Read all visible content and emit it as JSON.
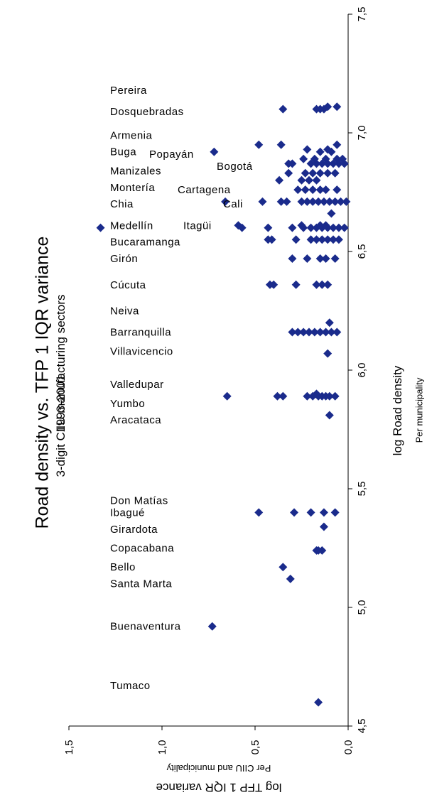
{
  "title": "Road density vs. TFP 1 IQR variance",
  "subtitle_line1": "3-digit CIIU manufacturing sectors",
  "subtitle_line2": "1993-2001",
  "chart_data": {
    "type": "scatter",
    "title": "Road density vs. TFP 1 IQR variance",
    "subtitle": [
      "3-digit CIIU manufacturing sectors",
      "1993-2001"
    ],
    "xlabel": "log Road density",
    "xlabel_sub": "Per municipality",
    "ylabel": "log TFP 1 IQR variance",
    "ylabel_sub": "Per CIIU and municipality",
    "xlim": [
      4.5,
      7.5
    ],
    "ylim": [
      0.0,
      1.5
    ],
    "x_ticks": [
      "4,5",
      "5,0",
      "5,5",
      "6,0",
      "6,5",
      "7,0",
      "7,5"
    ],
    "y_ticks": [
      "0,0",
      "0,5",
      "1,0",
      "1,5"
    ],
    "marker_color": "#1a2b8c",
    "grid": false,
    "points": [
      {
        "x": 4.6,
        "y": 0.16
      },
      {
        "x": 4.92,
        "y": 0.73
      },
      {
        "x": 5.12,
        "y": 0.31
      },
      {
        "x": 5.17,
        "y": 0.35
      },
      {
        "x": 5.24,
        "y": 0.14
      },
      {
        "x": 5.24,
        "y": 0.17
      },
      {
        "x": 5.24,
        "y": 0.16
      },
      {
        "x": 5.34,
        "y": 0.13
      },
      {
        "x": 5.4,
        "y": 0.48
      },
      {
        "x": 5.4,
        "y": 0.29
      },
      {
        "x": 5.4,
        "y": 0.2
      },
      {
        "x": 5.4,
        "y": 0.13
      },
      {
        "x": 5.4,
        "y": 0.07
      },
      {
        "x": 5.81,
        "y": 0.1
      },
      {
        "x": 5.89,
        "y": 0.65
      },
      {
        "x": 5.89,
        "y": 0.38
      },
      {
        "x": 5.89,
        "y": 0.35
      },
      {
        "x": 5.89,
        "y": 0.22
      },
      {
        "x": 5.89,
        "y": 0.19
      },
      {
        "x": 5.89,
        "y": 0.16
      },
      {
        "x": 5.89,
        "y": 0.14
      },
      {
        "x": 5.89,
        "y": 0.12
      },
      {
        "x": 5.89,
        "y": 0.1
      },
      {
        "x": 5.89,
        "y": 0.07
      },
      {
        "x": 5.9,
        "y": 0.17
      },
      {
        "x": 6.07,
        "y": 0.11
      },
      {
        "x": 6.16,
        "y": 0.3
      },
      {
        "x": 6.16,
        "y": 0.27
      },
      {
        "x": 6.16,
        "y": 0.24
      },
      {
        "x": 6.16,
        "y": 0.21
      },
      {
        "x": 6.16,
        "y": 0.18
      },
      {
        "x": 6.16,
        "y": 0.15
      },
      {
        "x": 6.16,
        "y": 0.12
      },
      {
        "x": 6.16,
        "y": 0.09
      },
      {
        "x": 6.16,
        "y": 0.06
      },
      {
        "x": 6.2,
        "y": 0.1
      },
      {
        "x": 6.36,
        "y": 0.42
      },
      {
        "x": 6.36,
        "y": 0.4
      },
      {
        "x": 6.36,
        "y": 0.28
      },
      {
        "x": 6.36,
        "y": 0.17
      },
      {
        "x": 6.36,
        "y": 0.14
      },
      {
        "x": 6.36,
        "y": 0.11
      },
      {
        "x": 6.47,
        "y": 0.3
      },
      {
        "x": 6.47,
        "y": 0.22
      },
      {
        "x": 6.47,
        "y": 0.15
      },
      {
        "x": 6.47,
        "y": 0.12
      },
      {
        "x": 6.47,
        "y": 0.07
      },
      {
        "x": 6.55,
        "y": 0.43
      },
      {
        "x": 6.55,
        "y": 0.41
      },
      {
        "x": 6.55,
        "y": 0.28
      },
      {
        "x": 6.55,
        "y": 0.2
      },
      {
        "x": 6.55,
        "y": 0.17
      },
      {
        "x": 6.55,
        "y": 0.14
      },
      {
        "x": 6.55,
        "y": 0.11
      },
      {
        "x": 6.55,
        "y": 0.08
      },
      {
        "x": 6.55,
        "y": 0.05
      },
      {
        "x": 6.6,
        "y": 1.33
      },
      {
        "x": 6.6,
        "y": 0.57
      },
      {
        "x": 6.6,
        "y": 0.43
      },
      {
        "x": 6.6,
        "y": 0.3
      },
      {
        "x": 6.6,
        "y": 0.24
      },
      {
        "x": 6.6,
        "y": 0.2
      },
      {
        "x": 6.6,
        "y": 0.17
      },
      {
        "x": 6.6,
        "y": 0.14
      },
      {
        "x": 6.6,
        "y": 0.11
      },
      {
        "x": 6.6,
        "y": 0.08
      },
      {
        "x": 6.6,
        "y": 0.05
      },
      {
        "x": 6.6,
        "y": 0.02
      },
      {
        "x": 6.61,
        "y": 0.59
      },
      {
        "x": 6.61,
        "y": 0.25
      },
      {
        "x": 6.61,
        "y": 0.15
      },
      {
        "x": 6.61,
        "y": 0.12
      },
      {
        "x": 6.66,
        "y": 0.09
      },
      {
        "x": 6.71,
        "y": 0.66
      },
      {
        "x": 6.71,
        "y": 0.46
      },
      {
        "x": 6.71,
        "y": 0.36
      },
      {
        "x": 6.71,
        "y": 0.33
      },
      {
        "x": 6.71,
        "y": 0.25
      },
      {
        "x": 6.71,
        "y": 0.22
      },
      {
        "x": 6.71,
        "y": 0.19
      },
      {
        "x": 6.71,
        "y": 0.16
      },
      {
        "x": 6.71,
        "y": 0.13
      },
      {
        "x": 6.71,
        "y": 0.1
      },
      {
        "x": 6.71,
        "y": 0.07
      },
      {
        "x": 6.71,
        "y": 0.04
      },
      {
        "x": 6.71,
        "y": 0.01
      },
      {
        "x": 6.76,
        "y": 0.27
      },
      {
        "x": 6.76,
        "y": 0.23
      },
      {
        "x": 6.76,
        "y": 0.19
      },
      {
        "x": 6.76,
        "y": 0.15
      },
      {
        "x": 6.76,
        "y": 0.12
      },
      {
        "x": 6.76,
        "y": 0.06
      },
      {
        "x": 6.8,
        "y": 0.37
      },
      {
        "x": 6.8,
        "y": 0.25
      },
      {
        "x": 6.8,
        "y": 0.21
      },
      {
        "x": 6.8,
        "y": 0.17
      },
      {
        "x": 6.83,
        "y": 0.32
      },
      {
        "x": 6.83,
        "y": 0.23
      },
      {
        "x": 6.83,
        "y": 0.19
      },
      {
        "x": 6.83,
        "y": 0.15
      },
      {
        "x": 6.83,
        "y": 0.11
      },
      {
        "x": 6.83,
        "y": 0.07
      },
      {
        "x": 6.87,
        "y": 0.32
      },
      {
        "x": 6.87,
        "y": 0.3
      },
      {
        "x": 6.87,
        "y": 0.2
      },
      {
        "x": 6.87,
        "y": 0.17
      },
      {
        "x": 6.87,
        "y": 0.14
      },
      {
        "x": 6.87,
        "y": 0.11
      },
      {
        "x": 6.87,
        "y": 0.08
      },
      {
        "x": 6.87,
        "y": 0.05
      },
      {
        "x": 6.87,
        "y": 0.02
      },
      {
        "x": 6.89,
        "y": 0.24
      },
      {
        "x": 6.89,
        "y": 0.18
      },
      {
        "x": 6.89,
        "y": 0.12
      },
      {
        "x": 6.89,
        "y": 0.06
      },
      {
        "x": 6.89,
        "y": 0.03
      },
      {
        "x": 6.92,
        "y": 0.72
      },
      {
        "x": 6.92,
        "y": 0.15
      },
      {
        "x": 6.92,
        "y": 0.09
      },
      {
        "x": 6.93,
        "y": 0.22
      },
      {
        "x": 6.93,
        "y": 0.11
      },
      {
        "x": 6.95,
        "y": 0.48
      },
      {
        "x": 6.95,
        "y": 0.36
      },
      {
        "x": 6.95,
        "y": 0.06
      },
      {
        "x": 7.1,
        "y": 0.35
      },
      {
        "x": 7.1,
        "y": 0.17
      },
      {
        "x": 7.1,
        "y": 0.15
      },
      {
        "x": 7.1,
        "y": 0.13
      },
      {
        "x": 7.11,
        "y": 0.11
      },
      {
        "x": 7.11,
        "y": 0.06
      }
    ],
    "annotations": [
      {
        "text": "Pereira",
        "x": 7.18
      },
      {
        "text": "Dosquebradas",
        "x": 7.09
      },
      {
        "text": "Armenia",
        "x": 6.99
      },
      {
        "text": "Buga",
        "x": 6.92
      },
      {
        "text": "Popayán",
        "x": 6.91,
        "col": 2
      },
      {
        "text": "Bogotá",
        "x": 6.86,
        "col": 3
      },
      {
        "text": "Manizales",
        "x": 6.84
      },
      {
        "text": "Montería",
        "x": 6.77
      },
      {
        "text": "Cartagena",
        "x": 6.76,
        "col": 2
      },
      {
        "text": "Chia",
        "x": 6.7
      },
      {
        "text": "Cali",
        "x": 6.7,
        "col": 4
      },
      {
        "text": "Medellín",
        "x": 6.61
      },
      {
        "text": "Itagüi",
        "x": 6.61,
        "col": 3
      },
      {
        "text": "Bucaramanga",
        "x": 6.54
      },
      {
        "text": "Girón",
        "x": 6.47
      },
      {
        "text": "Cúcuta",
        "x": 6.36
      },
      {
        "text": "Neiva",
        "x": 6.25
      },
      {
        "text": "Barranquilla",
        "x": 6.16
      },
      {
        "text": "Villavicencio",
        "x": 6.08
      },
      {
        "text": "Valledupar",
        "x": 5.94
      },
      {
        "text": "Yumbo",
        "x": 5.86
      },
      {
        "text": "Aracataca",
        "x": 5.79
      },
      {
        "text": "Don Matías",
        "x": 5.45
      },
      {
        "text": "Ibagué",
        "x": 5.4
      },
      {
        "text": "Girardota",
        "x": 5.33
      },
      {
        "text": "Copacabana",
        "x": 5.25
      },
      {
        "text": "Bello",
        "x": 5.17
      },
      {
        "text": "Santa Marta",
        "x": 5.1
      },
      {
        "text": "Buenaventura",
        "x": 4.92
      },
      {
        "text": "Tumaco",
        "x": 4.67
      }
    ]
  }
}
